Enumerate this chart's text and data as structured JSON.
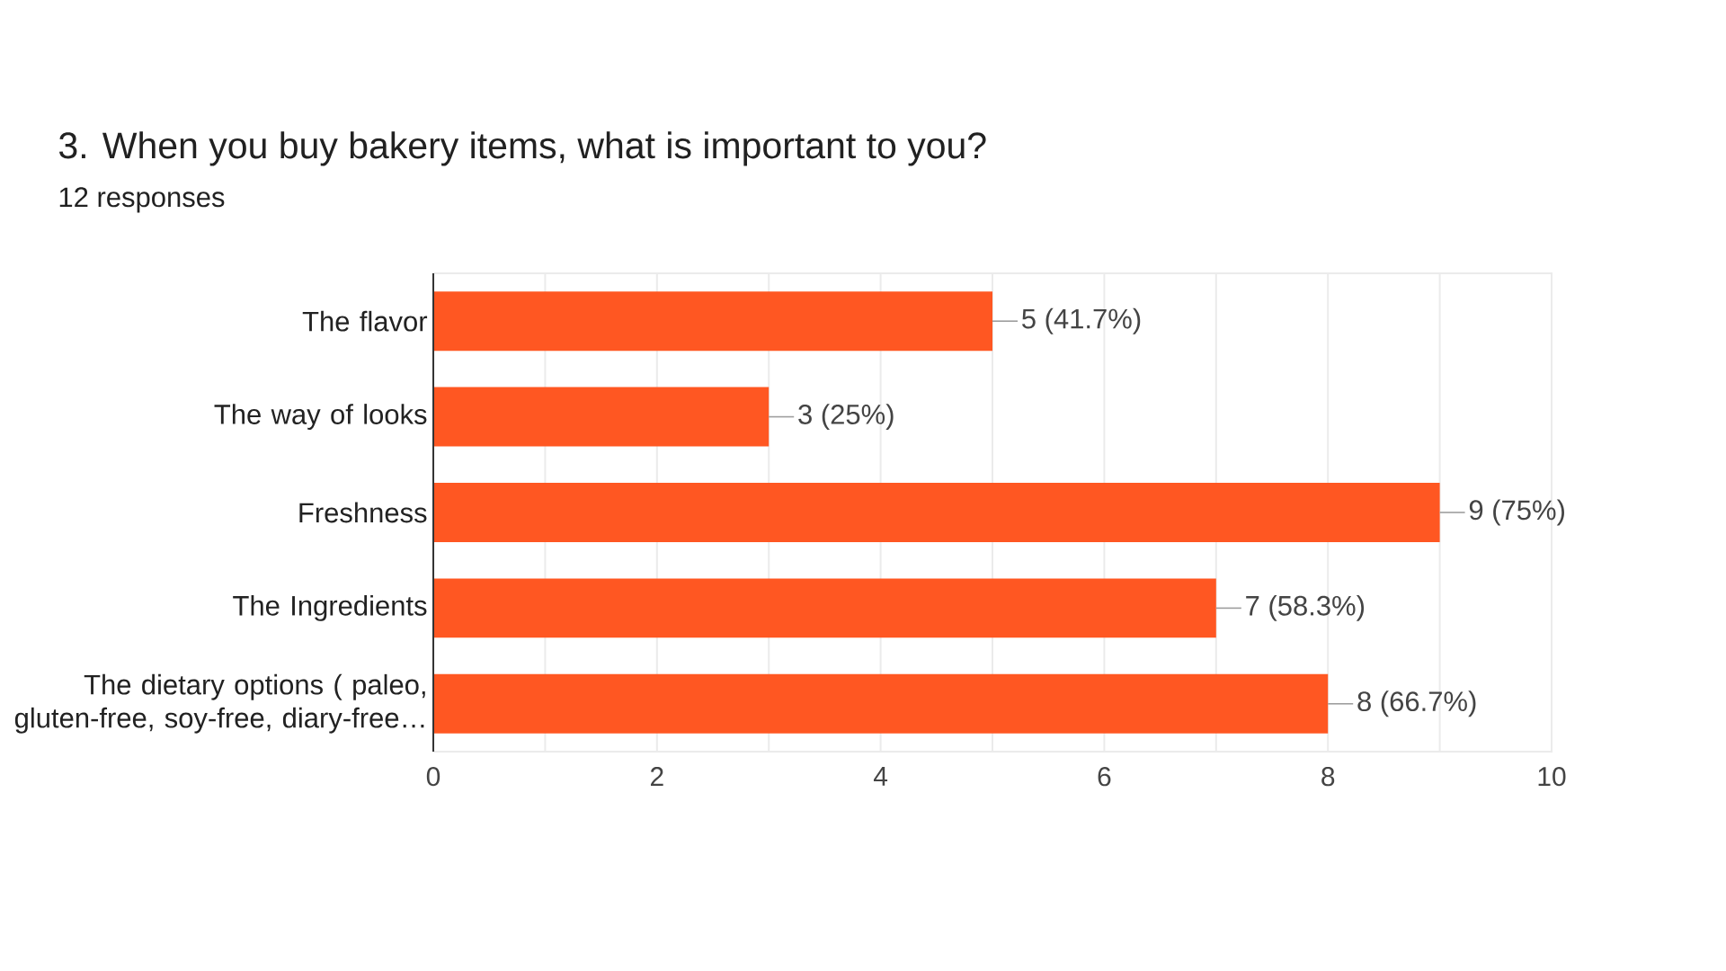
{
  "chart_data": {
    "type": "bar",
    "orientation": "horizontal",
    "title": "3. When you buy bakery items, what is important to you?",
    "subtitle": "12 responses",
    "categories": [
      "The flavor",
      "The way of looks",
      "Freshness",
      "The Ingredients",
      "The dietary options ( paleo, gluten-free, soy-free, diary-free…"
    ],
    "values": [
      5,
      3,
      9,
      7,
      8
    ],
    "value_labels": [
      "5 (41.7%)",
      "3 (25%)",
      "9 (75%)",
      "7 (58.3%)",
      "8 (66.7%)"
    ],
    "color": "#ff5722",
    "xlim": [
      0,
      10
    ],
    "xticks": [
      0,
      {
        "value": 1,
        "label": null
      },
      2,
      {
        "value": 3,
        "label": null
      },
      4,
      {
        "value": 5,
        "label": null
      },
      6,
      {
        "value": 7,
        "label": null
      },
      8,
      {
        "value": 9,
        "label": null
      },
      10
    ],
    "grid": "x"
  }
}
